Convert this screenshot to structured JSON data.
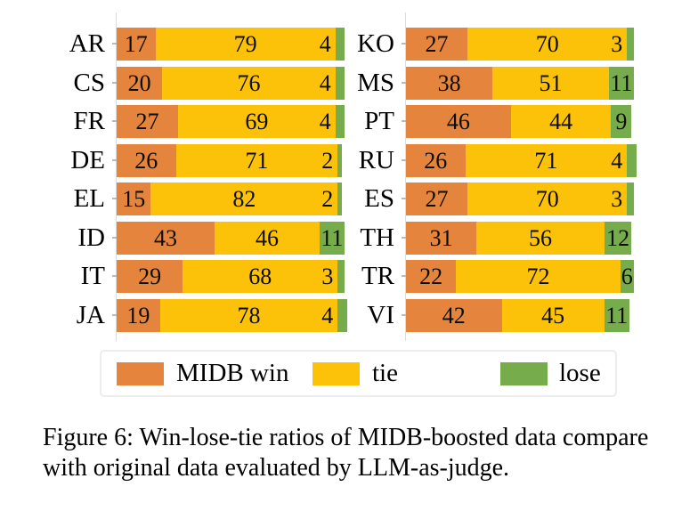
{
  "figure": {
    "caption_line1": "Figure 6: Win-lose-tie ratios of MIDB-boosted data compare",
    "caption_line2": "with original data evaluated by LLM-as-judge."
  },
  "legend": {
    "items": [
      {
        "key": "win",
        "label": "MIDB win",
        "color": "#E5843D"
      },
      {
        "key": "tie",
        "label": "tie",
        "color": "#FCC20A"
      },
      {
        "key": "lose",
        "label": "lose",
        "color": "#77AC4D"
      }
    ]
  },
  "chart_data": {
    "type": "bar",
    "orientation": "horizontal",
    "stacked": true,
    "unit": "percent",
    "xlim": [
      0,
      100
    ],
    "grid": false,
    "legend_position": "bottom",
    "series_order": [
      "win",
      "tie",
      "lose"
    ],
    "series_names": {
      "win": "MIDB win",
      "tie": "tie",
      "lose": "lose"
    },
    "colors": {
      "win": "#E5843D",
      "tie": "#FCC20A",
      "lose": "#77AC4D"
    },
    "columns": [
      {
        "name": "left",
        "rows": [
          {
            "label": "AR",
            "win": 17,
            "tie": 79,
            "lose": 4
          },
          {
            "label": "CS",
            "win": 20,
            "tie": 76,
            "lose": 4
          },
          {
            "label": "FR",
            "win": 27,
            "tie": 69,
            "lose": 4
          },
          {
            "label": "DE",
            "win": 26,
            "tie": 71,
            "lose": 2
          },
          {
            "label": "EL",
            "win": 15,
            "tie": 82,
            "lose": 2
          },
          {
            "label": "ID",
            "win": 43,
            "tie": 46,
            "lose": 11
          },
          {
            "label": "IT",
            "win": 29,
            "tie": 68,
            "lose": 3
          },
          {
            "label": "JA",
            "win": 19,
            "tie": 78,
            "lose": 4
          }
        ]
      },
      {
        "name": "right",
        "rows": [
          {
            "label": "KO",
            "win": 27,
            "tie": 70,
            "lose": 3
          },
          {
            "label": "MS",
            "win": 38,
            "tie": 51,
            "lose": 11
          },
          {
            "label": "PT",
            "win": 46,
            "tie": 44,
            "lose": 9
          },
          {
            "label": "RU",
            "win": 26,
            "tie": 71,
            "lose": 4
          },
          {
            "label": "ES",
            "win": 27,
            "tie": 70,
            "lose": 3
          },
          {
            "label": "TH",
            "win": 31,
            "tie": 56,
            "lose": 12
          },
          {
            "label": "TR",
            "win": 22,
            "tie": 72,
            "lose": 6
          },
          {
            "label": "VI",
            "win": 42,
            "tie": 45,
            "lose": 11
          }
        ]
      }
    ]
  }
}
